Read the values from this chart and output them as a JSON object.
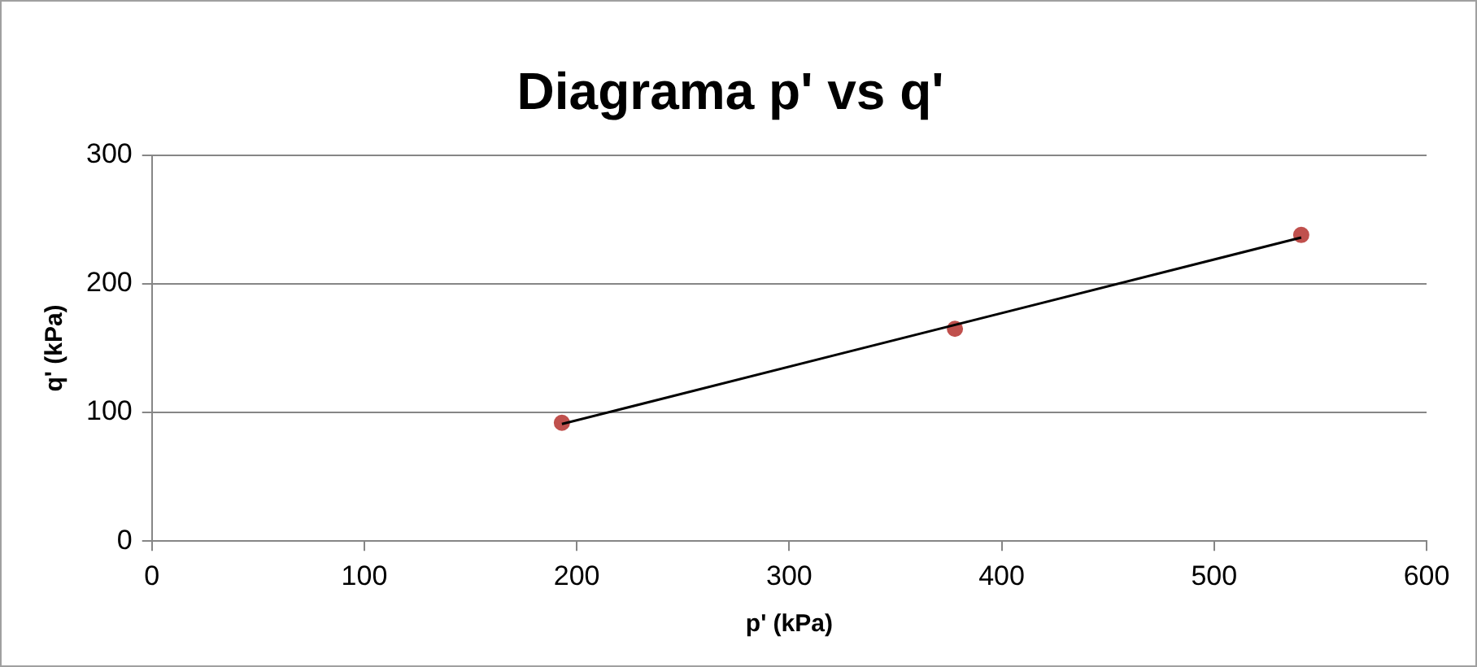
{
  "chart_data": {
    "type": "scatter",
    "title": "Diagrama p' vs q'",
    "xlabel": "p' (kPa)",
    "ylabel": "q' (kPa)",
    "xlim": [
      0,
      600
    ],
    "xticks": [
      0,
      100,
      200,
      300,
      400,
      500,
      600
    ],
    "ylim": [
      0,
      300
    ],
    "yticks": [
      0,
      100,
      200,
      300
    ],
    "grid": "y",
    "legend": false,
    "marker": "circle",
    "series": [
      {
        "color": "#c0504d",
        "x": [
          193,
          378,
          541
        ],
        "values": [
          92,
          165,
          238
        ]
      },
      {
        "type": "line",
        "color": "#000000",
        "x": [
          193,
          541
        ],
        "values": [
          91,
          236
        ],
        "marker": "none"
      }
    ]
  }
}
